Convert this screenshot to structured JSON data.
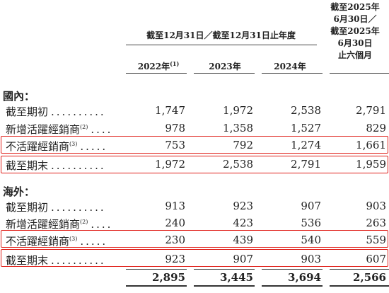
{
  "header": {
    "group_title": "截至12月31日／截至12月31日止年度",
    "col_2022": "2022年",
    "col_2022_note": "(1)",
    "col_2023": "2023年",
    "col_2024": "2024年",
    "col_2025_line1": "截至2025年",
    "col_2025_line2": "6月30日／",
    "col_2025_line3": "截至2025年",
    "col_2025_line4": "6月30日",
    "col_2025_line5": "止六個月"
  },
  "domestic": {
    "title": "國內：",
    "rows": [
      {
        "label": "截至期初",
        "dots": "..........",
        "note": "",
        "values": [
          "1,747",
          "1,972",
          "2,538",
          "2,791"
        ]
      },
      {
        "label": "新增活躍經銷商",
        "dots": "....",
        "note": "(2)",
        "values": [
          "978",
          "1,358",
          "1,527",
          "829"
        ]
      },
      {
        "label": "不活躍經銷商",
        "dots": ".....",
        "note": "(3)",
        "values": [
          "753",
          "792",
          "1,274",
          "1,661"
        ]
      },
      {
        "label": "截至期末",
        "dots": "..........",
        "note": "",
        "values": [
          "1,972",
          "2,538",
          "2,791",
          "1,959"
        ]
      }
    ]
  },
  "overseas": {
    "title": "海外：",
    "rows": [
      {
        "label": "截至期初",
        "dots": "..........",
        "note": "",
        "values": [
          "913",
          "923",
          "907",
          "903"
        ]
      },
      {
        "label": "新增活躍經銷商",
        "dots": "....",
        "note": "(2)",
        "values": [
          "240",
          "423",
          "536",
          "263"
        ]
      },
      {
        "label": "不活躍經銷商",
        "dots": ".....",
        "note": "(3)",
        "values": [
          "230",
          "439",
          "540",
          "559"
        ]
      },
      {
        "label": "截至期末",
        "dots": "..........",
        "note": "",
        "values": [
          "923",
          "907",
          "903",
          "607"
        ]
      }
    ]
  },
  "totals": [
    "2,895",
    "3,445",
    "3,694",
    "2,566"
  ],
  "highlight_color": "#e0201a"
}
